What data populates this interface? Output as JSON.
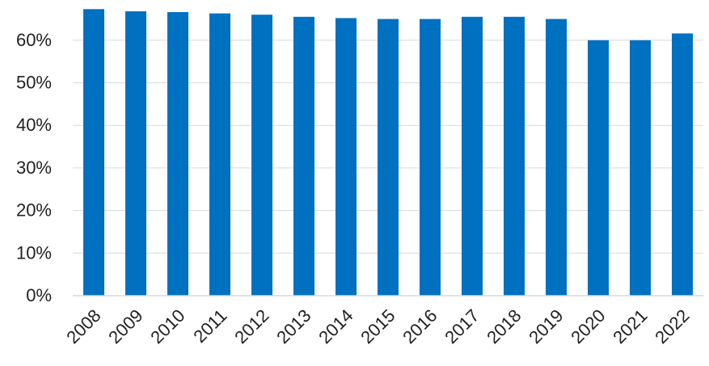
{
  "colors": {
    "bar": "#0070C0",
    "gridline": "#D9D9D9",
    "axis_line": "#D9D9D9",
    "text": "#222222"
  },
  "chart_data": {
    "type": "bar",
    "title": "",
    "xlabel": "",
    "ylabel": "",
    "categories": [
      "2008",
      "2009",
      "2010",
      "2011",
      "2012",
      "2013",
      "2014",
      "2015",
      "2016",
      "2017",
      "2018",
      "2019",
      "2020",
      "2021",
      "2022"
    ],
    "values": [
      67.3,
      66.8,
      66.6,
      66.3,
      66.0,
      65.5,
      65.2,
      65.0,
      65.0,
      65.5,
      65.5,
      65.0,
      60.0,
      60.0,
      61.6
    ],
    "ylim": [
      0,
      70
    ],
    "y_ticks": [
      {
        "value": 0,
        "label": "0%"
      },
      {
        "value": 10,
        "label": "10%"
      },
      {
        "value": 20,
        "label": "20%"
      },
      {
        "value": 30,
        "label": "30%"
      },
      {
        "value": 40,
        "label": "40%"
      },
      {
        "value": 50,
        "label": "50%"
      },
      {
        "value": 60,
        "label": "60%"
      }
    ],
    "grid": true,
    "legend": "none",
    "x_tick_rotation_deg": -45
  }
}
